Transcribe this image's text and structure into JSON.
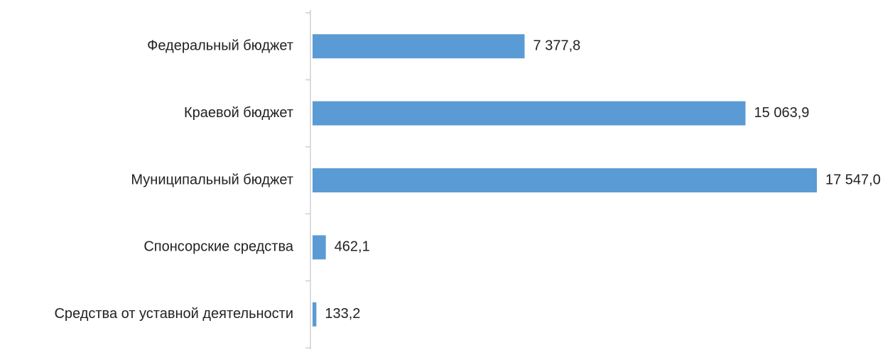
{
  "chart_data": {
    "type": "hbar",
    "categories": [
      "Федеральный бюджет",
      "Краевой бюджет",
      "Муниципальный бюджет",
      "Спонсорские средства",
      "Средства от уставной деятельности"
    ],
    "values": [
      7377.8,
      15063.9,
      17547.0,
      462.1,
      133.2
    ],
    "value_labels": [
      "7 377,8",
      "15 063,9",
      "17 547,0",
      "462,1",
      "133,2"
    ],
    "color": "#5b9bd5"
  }
}
